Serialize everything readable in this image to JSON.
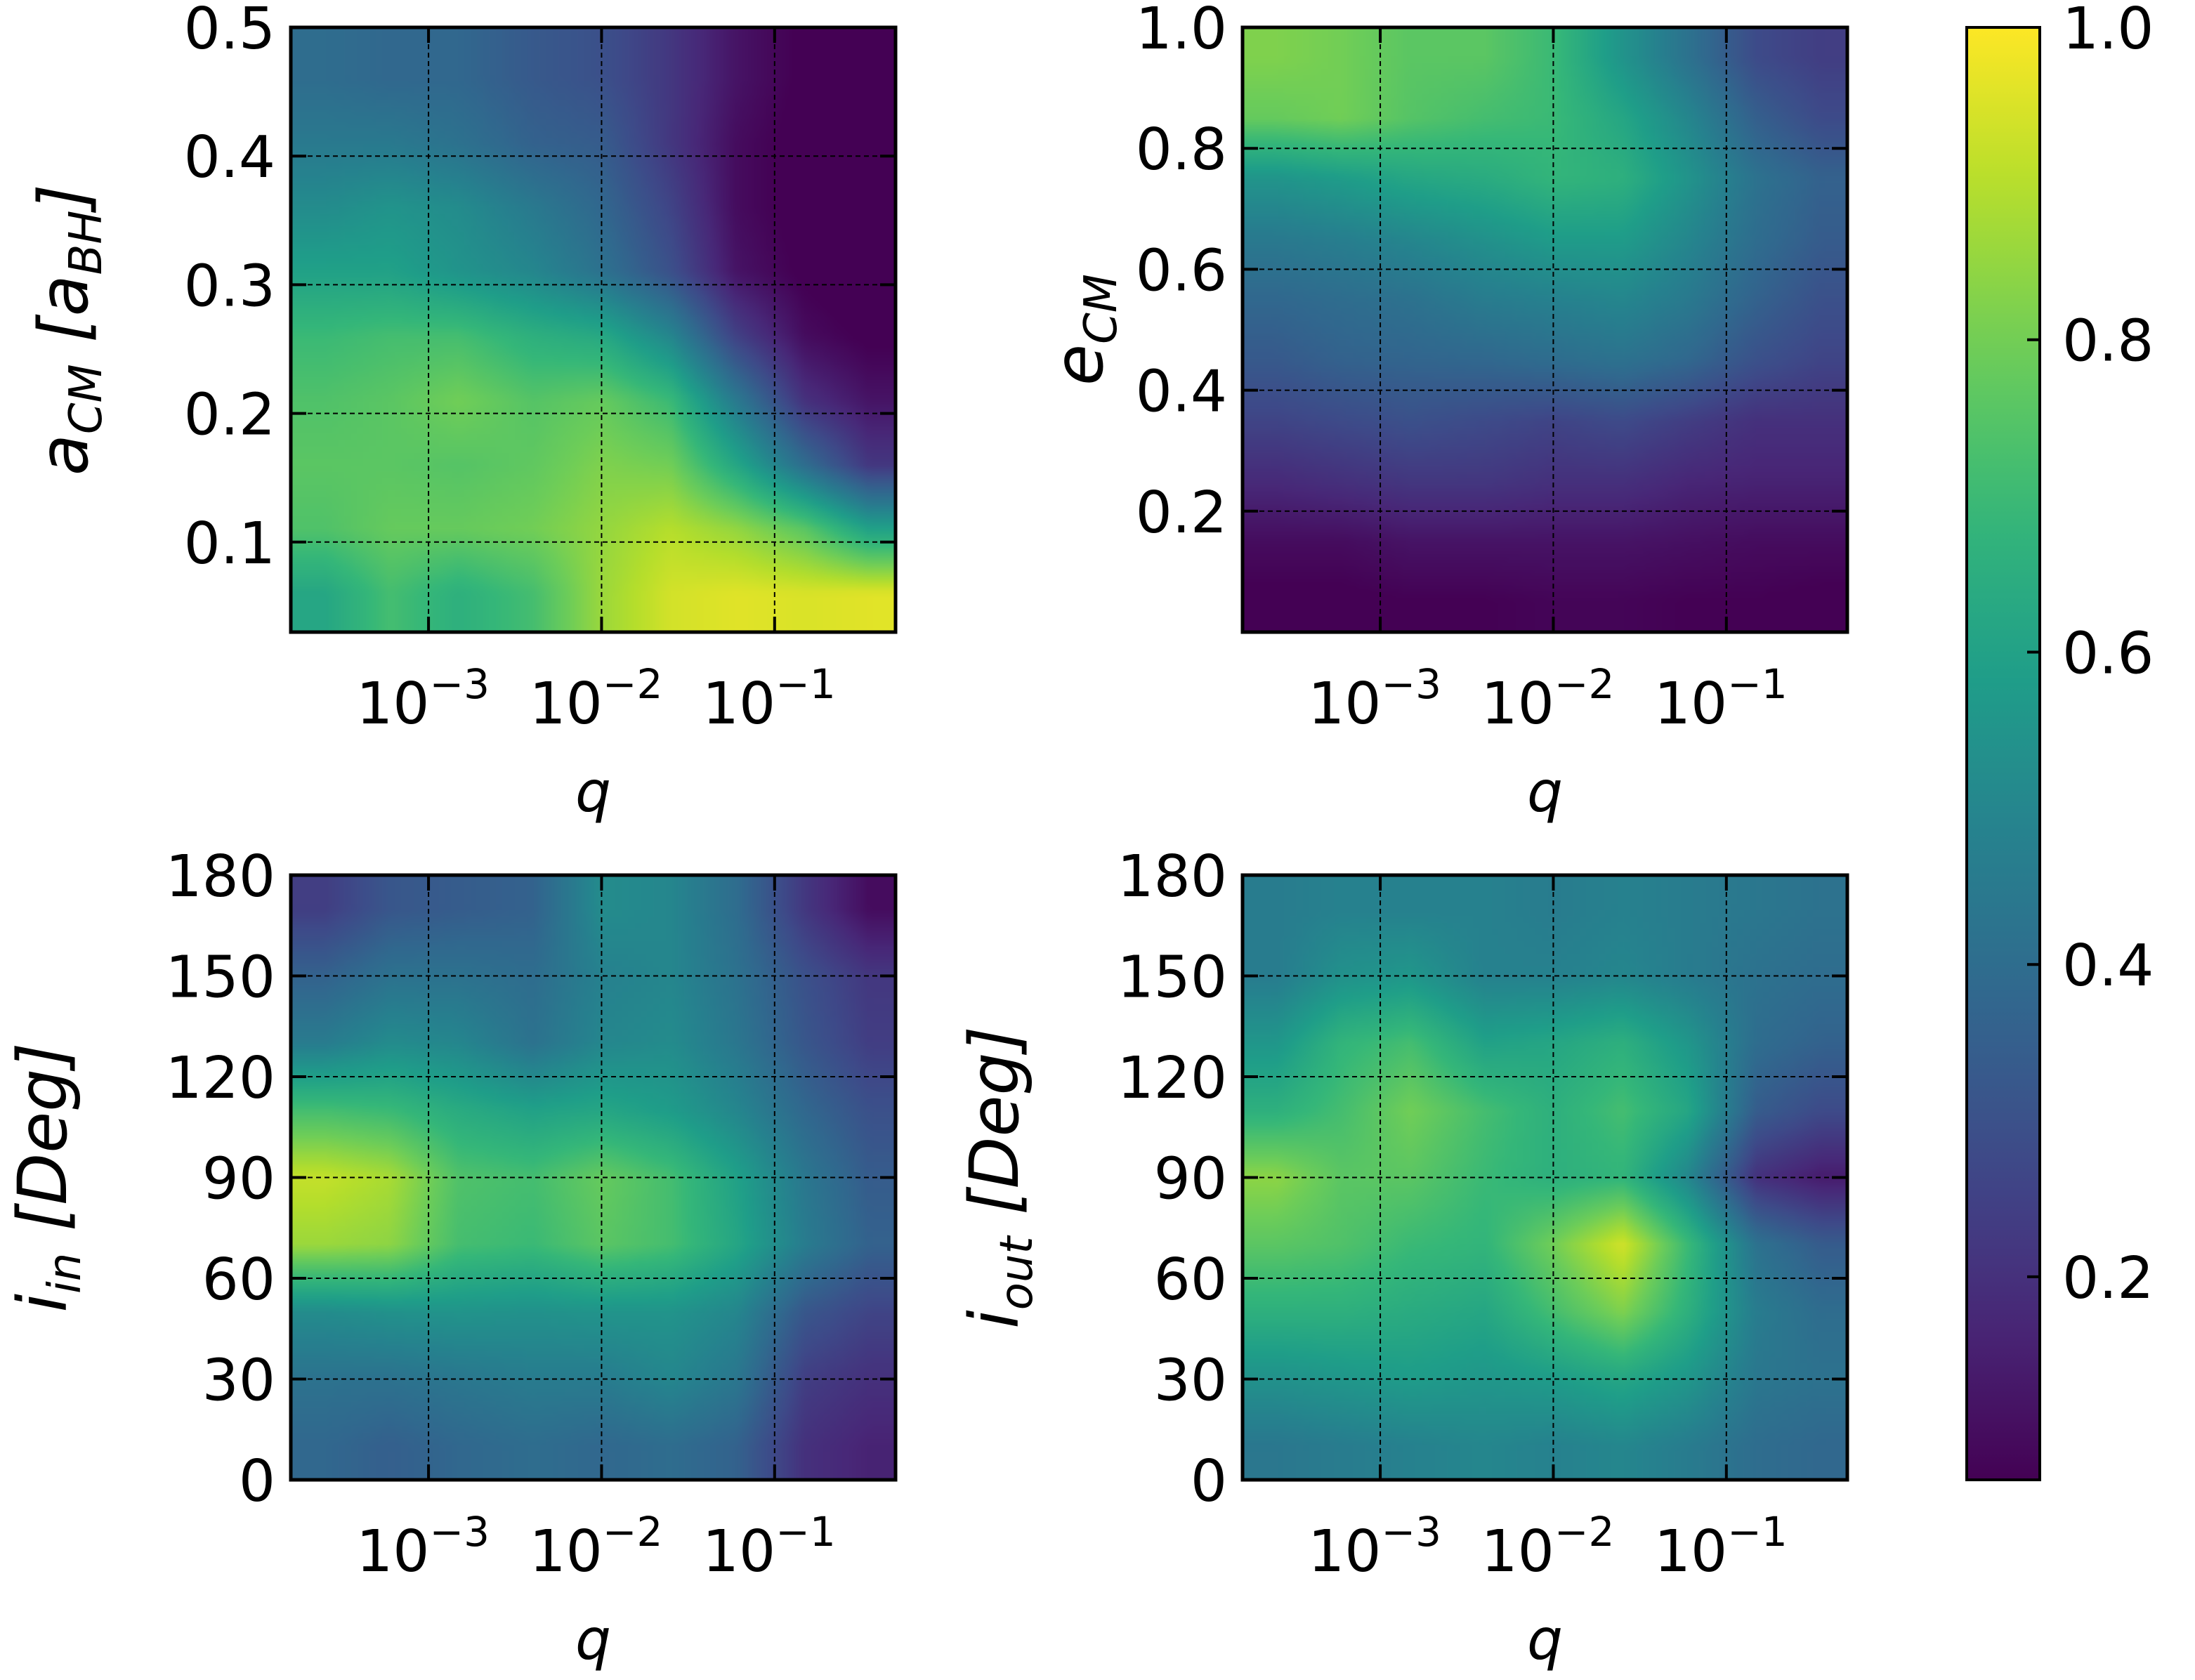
{
  "chart_data": [
    {
      "type": "heatmap",
      "id": "acm",
      "xlabel": "q",
      "ylabel": {
        "main": "a",
        "sub": "CM",
        "bracket_open": "[a",
        "bracket_sub": "BH",
        "bracket_close": "]"
      },
      "xscale": "log",
      "xlim": [
        0.00016,
        0.5
      ],
      "ylim": [
        0.03,
        0.5
      ],
      "xticks": [
        {
          "value": 0.001,
          "base": "10",
          "exp": "−3"
        },
        {
          "value": 0.01,
          "base": "10",
          "exp": "−2"
        },
        {
          "value": 0.1,
          "base": "10",
          "exp": "−1"
        }
      ],
      "yticks": [
        {
          "value": 0.1,
          "label": "0.1"
        },
        {
          "value": 0.2,
          "label": "0.2"
        },
        {
          "value": 0.3,
          "label": "0.3"
        },
        {
          "value": 0.4,
          "label": "0.4"
        },
        {
          "value": 0.5,
          "label": "0.5"
        }
      ],
      "grid": true,
      "x_centers": [
        0.00025,
        0.0006,
        0.0015,
        0.004,
        0.01,
        0.025,
        0.06,
        0.15,
        0.35
      ],
      "y_centers": [
        0.06,
        0.11,
        0.16,
        0.21,
        0.26,
        0.31,
        0.36,
        0.41,
        0.46
      ],
      "z": [
        [
          0.62,
          0.72,
          0.66,
          0.72,
          0.86,
          0.94,
          0.96,
          0.95,
          0.96
        ],
        [
          0.74,
          0.78,
          0.78,
          0.8,
          0.85,
          0.9,
          0.85,
          0.76,
          0.6
        ],
        [
          0.76,
          0.76,
          0.75,
          0.77,
          0.82,
          0.8,
          0.62,
          0.4,
          0.22
        ],
        [
          0.74,
          0.76,
          0.8,
          0.75,
          0.78,
          0.7,
          0.45,
          0.2,
          0.12
        ],
        [
          0.7,
          0.72,
          0.72,
          0.66,
          0.63,
          0.5,
          0.25,
          0.1,
          0.06
        ],
        [
          0.6,
          0.6,
          0.55,
          0.5,
          0.42,
          0.3,
          0.12,
          0.06,
          0.04
        ],
        [
          0.52,
          0.55,
          0.52,
          0.45,
          0.38,
          0.26,
          0.1,
          0.05,
          0.04
        ],
        [
          0.45,
          0.45,
          0.42,
          0.36,
          0.34,
          0.22,
          0.1,
          0.05,
          0.04
        ],
        [
          0.4,
          0.38,
          0.38,
          0.33,
          0.3,
          0.22,
          0.12,
          0.06,
          0.04
        ]
      ]
    },
    {
      "type": "heatmap",
      "id": "ecm",
      "xlabel": "q",
      "ylabel": {
        "main": "e",
        "sub": "CM"
      },
      "xscale": "log",
      "xlim": [
        0.00016,
        0.5
      ],
      "ylim": [
        0.0,
        1.0
      ],
      "xticks": [
        {
          "value": 0.001,
          "base": "10",
          "exp": "−3"
        },
        {
          "value": 0.01,
          "base": "10",
          "exp": "−2"
        },
        {
          "value": 0.1,
          "base": "10",
          "exp": "−1"
        }
      ],
      "yticks": [
        {
          "value": 0.2,
          "label": "0.2"
        },
        {
          "value": 0.4,
          "label": "0.4"
        },
        {
          "value": 0.6,
          "label": "0.6"
        },
        {
          "value": 0.8,
          "label": "0.8"
        },
        {
          "value": 1.0,
          "label": "1.0"
        }
      ],
      "grid": true,
      "x_centers": [
        0.00025,
        0.0006,
        0.0015,
        0.004,
        0.01,
        0.025,
        0.06,
        0.15,
        0.35
      ],
      "y_centers": [
        0.05,
        0.15,
        0.25,
        0.35,
        0.45,
        0.55,
        0.65,
        0.75,
        0.85,
        0.95
      ],
      "z": [
        [
          0.06,
          0.06,
          0.07,
          0.07,
          0.08,
          0.08,
          0.07,
          0.07,
          0.06
        ],
        [
          0.1,
          0.1,
          0.12,
          0.12,
          0.12,
          0.12,
          0.11,
          0.1,
          0.1
        ],
        [
          0.18,
          0.2,
          0.22,
          0.22,
          0.2,
          0.2,
          0.17,
          0.16,
          0.16
        ],
        [
          0.26,
          0.28,
          0.3,
          0.28,
          0.26,
          0.28,
          0.24,
          0.2,
          0.2
        ],
        [
          0.33,
          0.36,
          0.37,
          0.38,
          0.4,
          0.42,
          0.38,
          0.3,
          0.26
        ],
        [
          0.38,
          0.4,
          0.42,
          0.46,
          0.48,
          0.5,
          0.45,
          0.36,
          0.3
        ],
        [
          0.45,
          0.47,
          0.5,
          0.54,
          0.58,
          0.58,
          0.5,
          0.4,
          0.34
        ],
        [
          0.55,
          0.58,
          0.62,
          0.64,
          0.68,
          0.66,
          0.55,
          0.42,
          0.36
        ],
        [
          0.78,
          0.8,
          0.75,
          0.72,
          0.7,
          0.62,
          0.5,
          0.35,
          0.28
        ],
        [
          0.82,
          0.8,
          0.76,
          0.76,
          0.7,
          0.55,
          0.42,
          0.28,
          0.24
        ]
      ]
    },
    {
      "type": "heatmap",
      "id": "iin",
      "xlabel": "q",
      "ylabel": {
        "main": "i",
        "sub": "in",
        "bracket_open": "[Deg",
        "bracket_close": "]"
      },
      "xscale": "log",
      "xlim": [
        0.00016,
        0.5
      ],
      "ylim": [
        0,
        180
      ],
      "xticks": [
        {
          "value": 0.001,
          "base": "10",
          "exp": "−3"
        },
        {
          "value": 0.01,
          "base": "10",
          "exp": "−2"
        },
        {
          "value": 0.1,
          "base": "10",
          "exp": "−1"
        }
      ],
      "yticks": [
        {
          "value": 0,
          "label": "0"
        },
        {
          "value": 30,
          "label": "30"
        },
        {
          "value": 60,
          "label": "60"
        },
        {
          "value": 90,
          "label": "90"
        },
        {
          "value": 120,
          "label": "120"
        },
        {
          "value": 150,
          "label": "150"
        },
        {
          "value": 180,
          "label": "180"
        }
      ],
      "grid": true,
      "x_centers": [
        0.00025,
        0.0006,
        0.0015,
        0.004,
        0.01,
        0.025,
        0.06,
        0.15,
        0.35
      ],
      "y_centers": [
        10,
        30,
        50,
        70,
        90,
        110,
        130,
        150,
        170
      ],
      "z": [
        [
          0.38,
          0.35,
          0.38,
          0.4,
          0.38,
          0.4,
          0.36,
          0.2,
          0.16
        ],
        [
          0.42,
          0.42,
          0.44,
          0.46,
          0.46,
          0.5,
          0.44,
          0.24,
          0.2
        ],
        [
          0.52,
          0.54,
          0.55,
          0.54,
          0.55,
          0.55,
          0.5,
          0.32,
          0.26
        ],
        [
          0.86,
          0.84,
          0.72,
          0.7,
          0.76,
          0.72,
          0.62,
          0.46,
          0.36
        ],
        [
          0.92,
          0.88,
          0.74,
          0.72,
          0.78,
          0.72,
          0.6,
          0.44,
          0.34
        ],
        [
          0.72,
          0.7,
          0.64,
          0.6,
          0.62,
          0.58,
          0.5,
          0.38,
          0.3
        ],
        [
          0.46,
          0.52,
          0.5,
          0.42,
          0.5,
          0.52,
          0.44,
          0.32,
          0.24
        ],
        [
          0.36,
          0.42,
          0.42,
          0.4,
          0.48,
          0.5,
          0.42,
          0.3,
          0.22
        ],
        [
          0.24,
          0.32,
          0.34,
          0.36,
          0.52,
          0.5,
          0.4,
          0.22,
          0.1
        ]
      ]
    },
    {
      "type": "heatmap",
      "id": "iout",
      "xlabel": "q",
      "ylabel": {
        "main": "i",
        "sub": "out",
        "bracket_open": "[Deg",
        "bracket_close": "]"
      },
      "xscale": "log",
      "xlim": [
        0.00016,
        0.5
      ],
      "ylim": [
        0,
        180
      ],
      "xticks": [
        {
          "value": 0.001,
          "base": "10",
          "exp": "−3"
        },
        {
          "value": 0.01,
          "base": "10",
          "exp": "−2"
        },
        {
          "value": 0.1,
          "base": "10",
          "exp": "−1"
        }
      ],
      "yticks": [
        {
          "value": 0,
          "label": "0"
        },
        {
          "value": 30,
          "label": "30"
        },
        {
          "value": 60,
          "label": "60"
        },
        {
          "value": 90,
          "label": "90"
        },
        {
          "value": 120,
          "label": "120"
        },
        {
          "value": 150,
          "label": "150"
        },
        {
          "value": 180,
          "label": "180"
        }
      ],
      "grid": true,
      "x_centers": [
        0.00025,
        0.0006,
        0.0015,
        0.004,
        0.01,
        0.025,
        0.06,
        0.15,
        0.35
      ],
      "y_centers": [
        10,
        30,
        50,
        70,
        90,
        110,
        130,
        150,
        170
      ],
      "z": [
        [
          0.44,
          0.46,
          0.48,
          0.5,
          0.48,
          0.5,
          0.46,
          0.4,
          0.38
        ],
        [
          0.54,
          0.56,
          0.58,
          0.56,
          0.58,
          0.62,
          0.56,
          0.44,
          0.42
        ],
        [
          0.66,
          0.66,
          0.64,
          0.62,
          0.72,
          0.82,
          0.66,
          0.46,
          0.4
        ],
        [
          0.76,
          0.74,
          0.7,
          0.68,
          0.8,
          0.94,
          0.7,
          0.42,
          0.34
        ],
        [
          0.84,
          0.76,
          0.76,
          0.7,
          0.66,
          0.68,
          0.5,
          0.2,
          0.14
        ],
        [
          0.66,
          0.72,
          0.8,
          0.72,
          0.66,
          0.72,
          0.62,
          0.34,
          0.28
        ],
        [
          0.56,
          0.68,
          0.72,
          0.6,
          0.62,
          0.66,
          0.56,
          0.4,
          0.36
        ],
        [
          0.46,
          0.54,
          0.56,
          0.48,
          0.48,
          0.5,
          0.46,
          0.42,
          0.4
        ],
        [
          0.46,
          0.48,
          0.48,
          0.48,
          0.46,
          0.48,
          0.46,
          0.44,
          0.42
        ]
      ]
    }
  ],
  "colorbar": {
    "colormap": "viridis",
    "range": [
      0.07,
      1.0
    ],
    "ticks": [
      {
        "value": 0.2,
        "label": "0.2"
      },
      {
        "value": 0.4,
        "label": "0.4"
      },
      {
        "value": 0.6,
        "label": "0.6"
      },
      {
        "value": 0.8,
        "label": "0.8"
      },
      {
        "value": 1.0,
        "label": "1.0"
      }
    ]
  }
}
